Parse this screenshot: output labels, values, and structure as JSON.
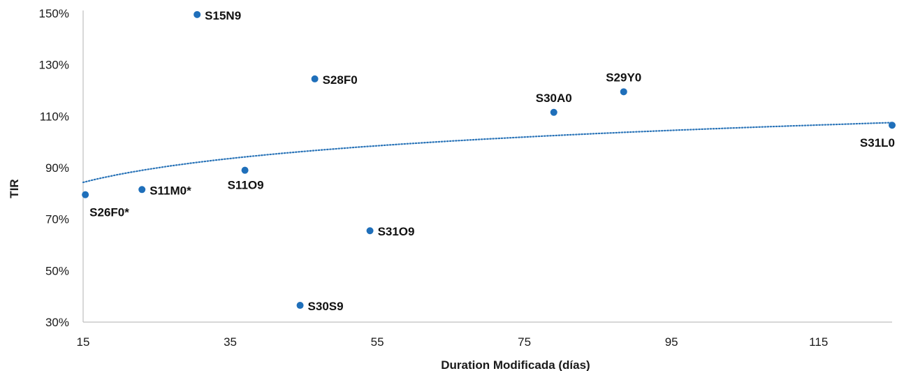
{
  "chart_data": {
    "type": "scatter",
    "title": "",
    "xlabel": "Duration Modificada (días)",
    "ylabel": "TIR",
    "xlim": [
      15,
      125
    ],
    "ylim": [
      30,
      150
    ],
    "x_ticks": [
      15,
      35,
      55,
      75,
      95,
      115
    ],
    "y_ticks": [
      30,
      50,
      70,
      90,
      110,
      130,
      150
    ],
    "y_tick_suffix": "%",
    "points": [
      {
        "label": "S15N9",
        "x": 30.5,
        "y": 149.5,
        "label_pos": "right"
      },
      {
        "label": "S28F0",
        "x": 46.5,
        "y": 124.5,
        "label_pos": "right"
      },
      {
        "label": "S30A0",
        "x": 79.0,
        "y": 111.5,
        "label_pos": "above"
      },
      {
        "label": "S29Y0",
        "x": 88.5,
        "y": 119.5,
        "label_pos": "above"
      },
      {
        "label": "S31L0",
        "x": 125.0,
        "y": 106.5,
        "label_pos": "below"
      },
      {
        "label": "S11O9",
        "x": 37.0,
        "y": 89.0,
        "label_pos": "below"
      },
      {
        "label": "S11M0*",
        "x": 23.0,
        "y": 81.5,
        "label_pos": "right"
      },
      {
        "label": "S26F0*",
        "x": 15.3,
        "y": 79.5,
        "label_pos": "below-right"
      },
      {
        "label": "S31O9",
        "x": 54.0,
        "y": 65.5,
        "label_pos": "right"
      },
      {
        "label": "S30S9",
        "x": 44.5,
        "y": 36.5,
        "label_pos": "right"
      }
    ],
    "trendline": {
      "type": "logarithmic",
      "style": "dotted",
      "y_at_x_start": 84.3,
      "y_at_x_end": 107.5
    },
    "colors": {
      "marker": "#1f6fba",
      "trendline": "#2a74b8",
      "axis": "#bfbfbf"
    },
    "grid": false,
    "legend": "none"
  }
}
